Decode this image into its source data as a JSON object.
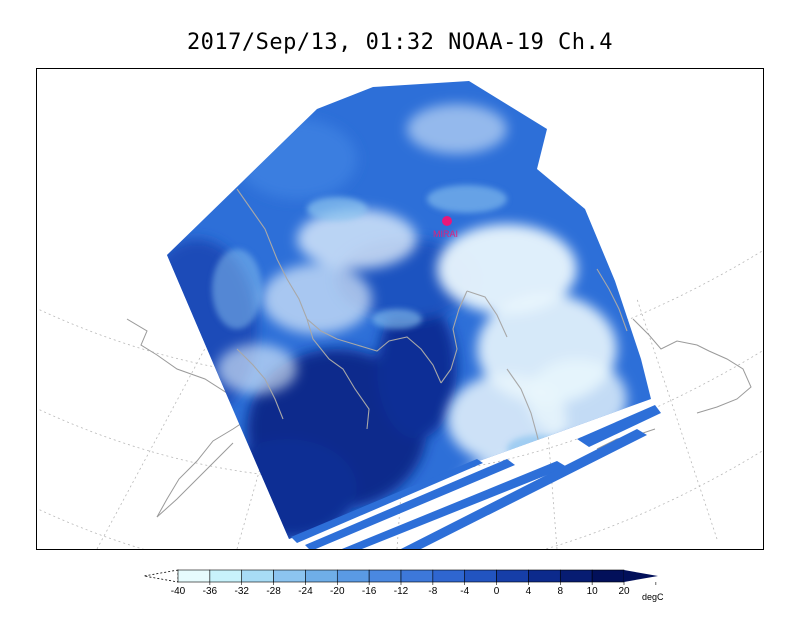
{
  "title": "2017/Sep/13, 01:32 NOAA-19 Ch.4",
  "station": {
    "name": "MIRAI",
    "color": "#e8187a"
  },
  "colorbar": {
    "labels": [
      "-40",
      "-36",
      "-32",
      "-28",
      "-24",
      "-20",
      "-16",
      "-12",
      "-8",
      "-4",
      "0",
      "4",
      "8",
      "10",
      "20"
    ],
    "colors": [
      "#e6fbfd",
      "#c8f2fb",
      "#a8dcf5",
      "#8cc4f0",
      "#6faee8",
      "#5a9ae4",
      "#4a88e0",
      "#3d78da",
      "#2f66d0",
      "#2254c0",
      "#163ea8",
      "#0c2a8c",
      "#071c72",
      "#02105a"
    ],
    "unit": "degC"
  }
}
